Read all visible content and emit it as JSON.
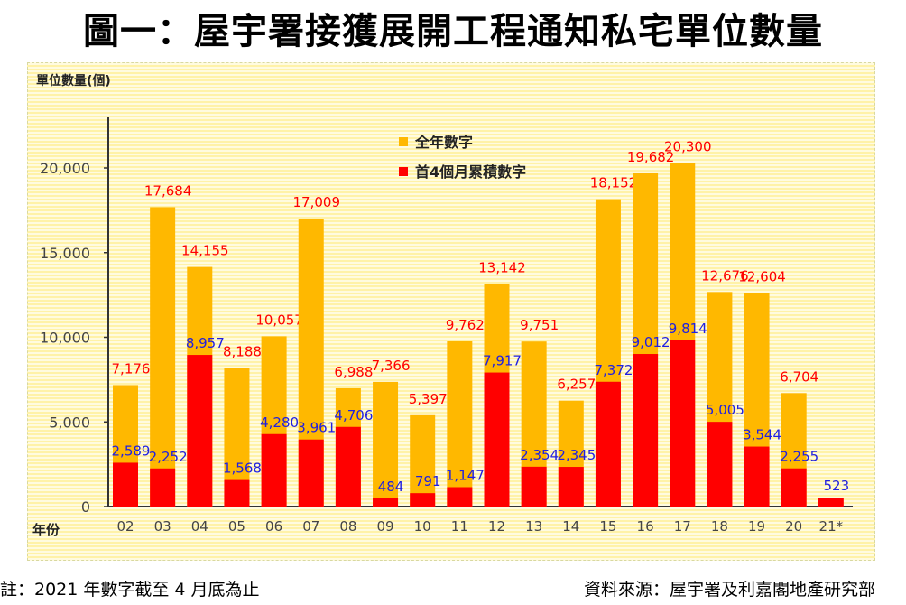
{
  "title": "圖一：屋宇署接獲展開工程通知私宅單位數量",
  "footer": {
    "note": "註：2021 年數字截至 4 月底為止",
    "source": "資料來源：屋宇署及利嘉閣地產研究部"
  },
  "colors": {
    "full_year": "#ffb800",
    "first4": "#ff0000",
    "full_label": "#ff0000",
    "first4_label": "#2020e0"
  },
  "chart_data": {
    "type": "bar",
    "title": "",
    "ylabel": "單位數量(個)",
    "xlabel": "年份",
    "ylim": [
      0,
      20000
    ],
    "yticks": [
      0,
      5000,
      10000,
      15000,
      20000
    ],
    "ytick_labels": [
      "0",
      "5,000",
      "10,000",
      "15,000",
      "20,000"
    ],
    "legend_position": "top-center",
    "categories": [
      "02",
      "03",
      "04",
      "05",
      "06",
      "07",
      "08",
      "09",
      "10",
      "11",
      "12",
      "13",
      "14",
      "15",
      "16",
      "17",
      "18",
      "19",
      "20",
      "21*"
    ],
    "series": [
      {
        "name": "全年數字",
        "values": [
          7176,
          17684,
          14155,
          8188,
          10057,
          17009,
          6988,
          7366,
          5397,
          9762,
          13142,
          9751,
          6257,
          18152,
          19682,
          20300,
          12676,
          12604,
          6704,
          null
        ],
        "labels": [
          "7,176",
          "17,684",
          "14,155",
          "8,188",
          "10,057",
          "17,009",
          "6,988",
          "7,366",
          "5,397",
          "9,762",
          "13,142",
          "9,751",
          "6,257",
          "18,152",
          "19,682",
          "20,300",
          "12,676",
          "12,604",
          "6,704",
          ""
        ]
      },
      {
        "name": "首4個月累積數字",
        "values": [
          2589,
          2252,
          8957,
          1568,
          4280,
          3961,
          4706,
          484,
          791,
          1147,
          7917,
          2354,
          2345,
          7372,
          9012,
          9814,
          5005,
          3544,
          2255,
          523
        ],
        "labels": [
          "2,589",
          "2,252",
          "8,957",
          "1,568",
          "4,280",
          "3,961",
          "4,706",
          "484",
          "791",
          "1,147",
          "7,917",
          "2,354",
          "2,345",
          "7,372",
          "9,012",
          "9,814",
          "5,005",
          "3,544",
          "2,255",
          "523"
        ]
      }
    ]
  }
}
